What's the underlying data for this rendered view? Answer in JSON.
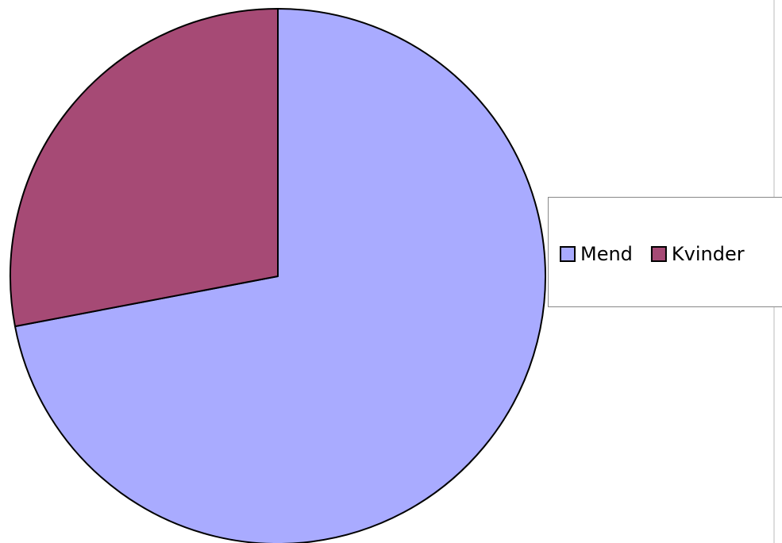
{
  "chart_data": {
    "type": "pie",
    "categories": [
      "Mend",
      "Kvinder"
    ],
    "values": [
      72,
      28
    ],
    "colors": [
      "#a9abff",
      "#a64a75"
    ],
    "legend": "right"
  }
}
